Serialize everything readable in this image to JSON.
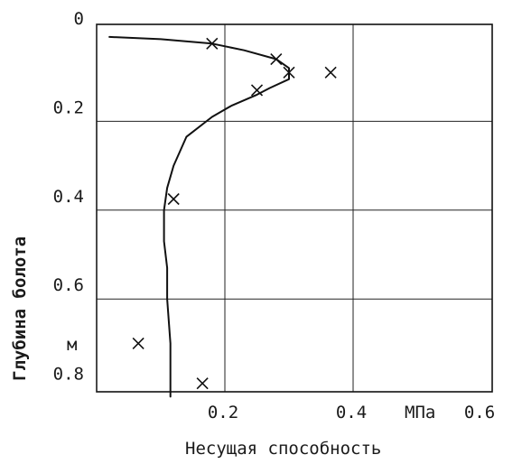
{
  "chart_data": {
    "type": "line",
    "x_axis": {
      "label": "Несущая способность",
      "unit": "МПа",
      "range": [
        0,
        0.6
      ],
      "tick_labels": [
        "0.2",
        "0.4",
        "0.6"
      ],
      "tick_values": [
        0.2,
        0.4,
        0.6
      ]
    },
    "y_axis": {
      "label": "Глубина болота",
      "unit": "м",
      "range": [
        0,
        0.85
      ],
      "inverted": true,
      "tick_labels": [
        "0",
        "0.2",
        "0.4",
        "0.6",
        "0.8"
      ],
      "tick_values": [
        0,
        0.2,
        0.4,
        0.6,
        0.8
      ]
    },
    "grid": true,
    "series": [
      {
        "style": "line",
        "points": [
          {
            "x": 0.02,
            "y": 0.01
          },
          {
            "x": 0.1,
            "y": 0.015
          },
          {
            "x": 0.18,
            "y": 0.025
          },
          {
            "x": 0.23,
            "y": 0.04
          },
          {
            "x": 0.28,
            "y": 0.06
          },
          {
            "x": 0.3,
            "y": 0.08
          },
          {
            "x": 0.3,
            "y": 0.105
          },
          {
            "x": 0.27,
            "y": 0.125
          },
          {
            "x": 0.25,
            "y": 0.14
          },
          {
            "x": 0.21,
            "y": 0.165
          },
          {
            "x": 0.18,
            "y": 0.19
          },
          {
            "x": 0.14,
            "y": 0.235
          },
          {
            "x": 0.12,
            "y": 0.3
          },
          {
            "x": 0.11,
            "y": 0.35
          },
          {
            "x": 0.105,
            "y": 0.4
          },
          {
            "x": 0.105,
            "y": 0.47
          },
          {
            "x": 0.11,
            "y": 0.53
          },
          {
            "x": 0.11,
            "y": 0.6
          },
          {
            "x": 0.115,
            "y": 0.7
          },
          {
            "x": 0.115,
            "y": 0.82
          }
        ]
      },
      {
        "style": "markers",
        "marker": "x",
        "points": [
          {
            "x": 0.18,
            "y": 0.025
          },
          {
            "x": 0.28,
            "y": 0.06
          },
          {
            "x": 0.3,
            "y": 0.09
          },
          {
            "x": 0.365,
            "y": 0.09
          },
          {
            "x": 0.25,
            "y": 0.13
          },
          {
            "x": 0.12,
            "y": 0.375
          },
          {
            "x": 0.065,
            "y": 0.7
          },
          {
            "x": 0.165,
            "y": 0.79
          }
        ]
      }
    ]
  }
}
